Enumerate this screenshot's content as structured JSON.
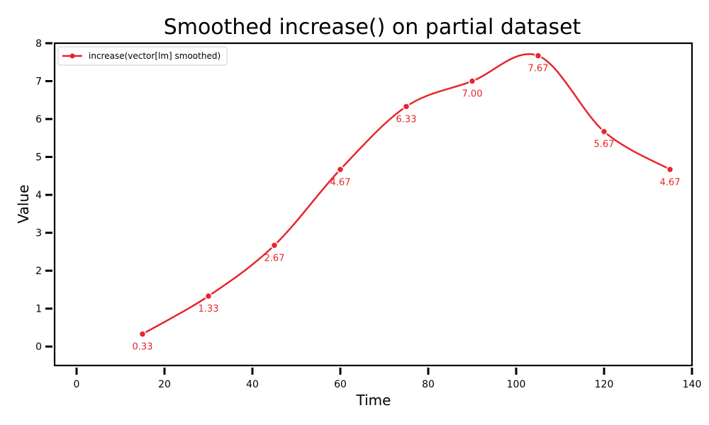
{
  "chart_data": {
    "type": "line",
    "title": "Smoothed increase() on partial dataset",
    "xlabel": "Time",
    "ylabel": "Value",
    "xlim": [
      -5,
      140
    ],
    "ylim": [
      -0.5,
      8
    ],
    "x_ticks": [
      0,
      20,
      40,
      60,
      80,
      100,
      120,
      140
    ],
    "y_ticks": [
      0,
      1,
      2,
      3,
      4,
      5,
      6,
      7,
      8
    ],
    "grid": false,
    "legend_position": "top-left",
    "series": [
      {
        "name": "increase(vector[lm] smoothed)",
        "color": "#e8252b",
        "x": [
          15,
          30,
          45,
          60,
          75,
          90,
          105,
          120,
          135
        ],
        "values": [
          0.33,
          1.33,
          2.67,
          4.67,
          6.33,
          7.0,
          7.67,
          5.67,
          4.67
        ],
        "data_labels": [
          "0.33",
          "1.33",
          "2.67",
          "4.67",
          "6.33",
          "7.00",
          "7.67",
          "5.67",
          "4.67"
        ]
      }
    ]
  }
}
